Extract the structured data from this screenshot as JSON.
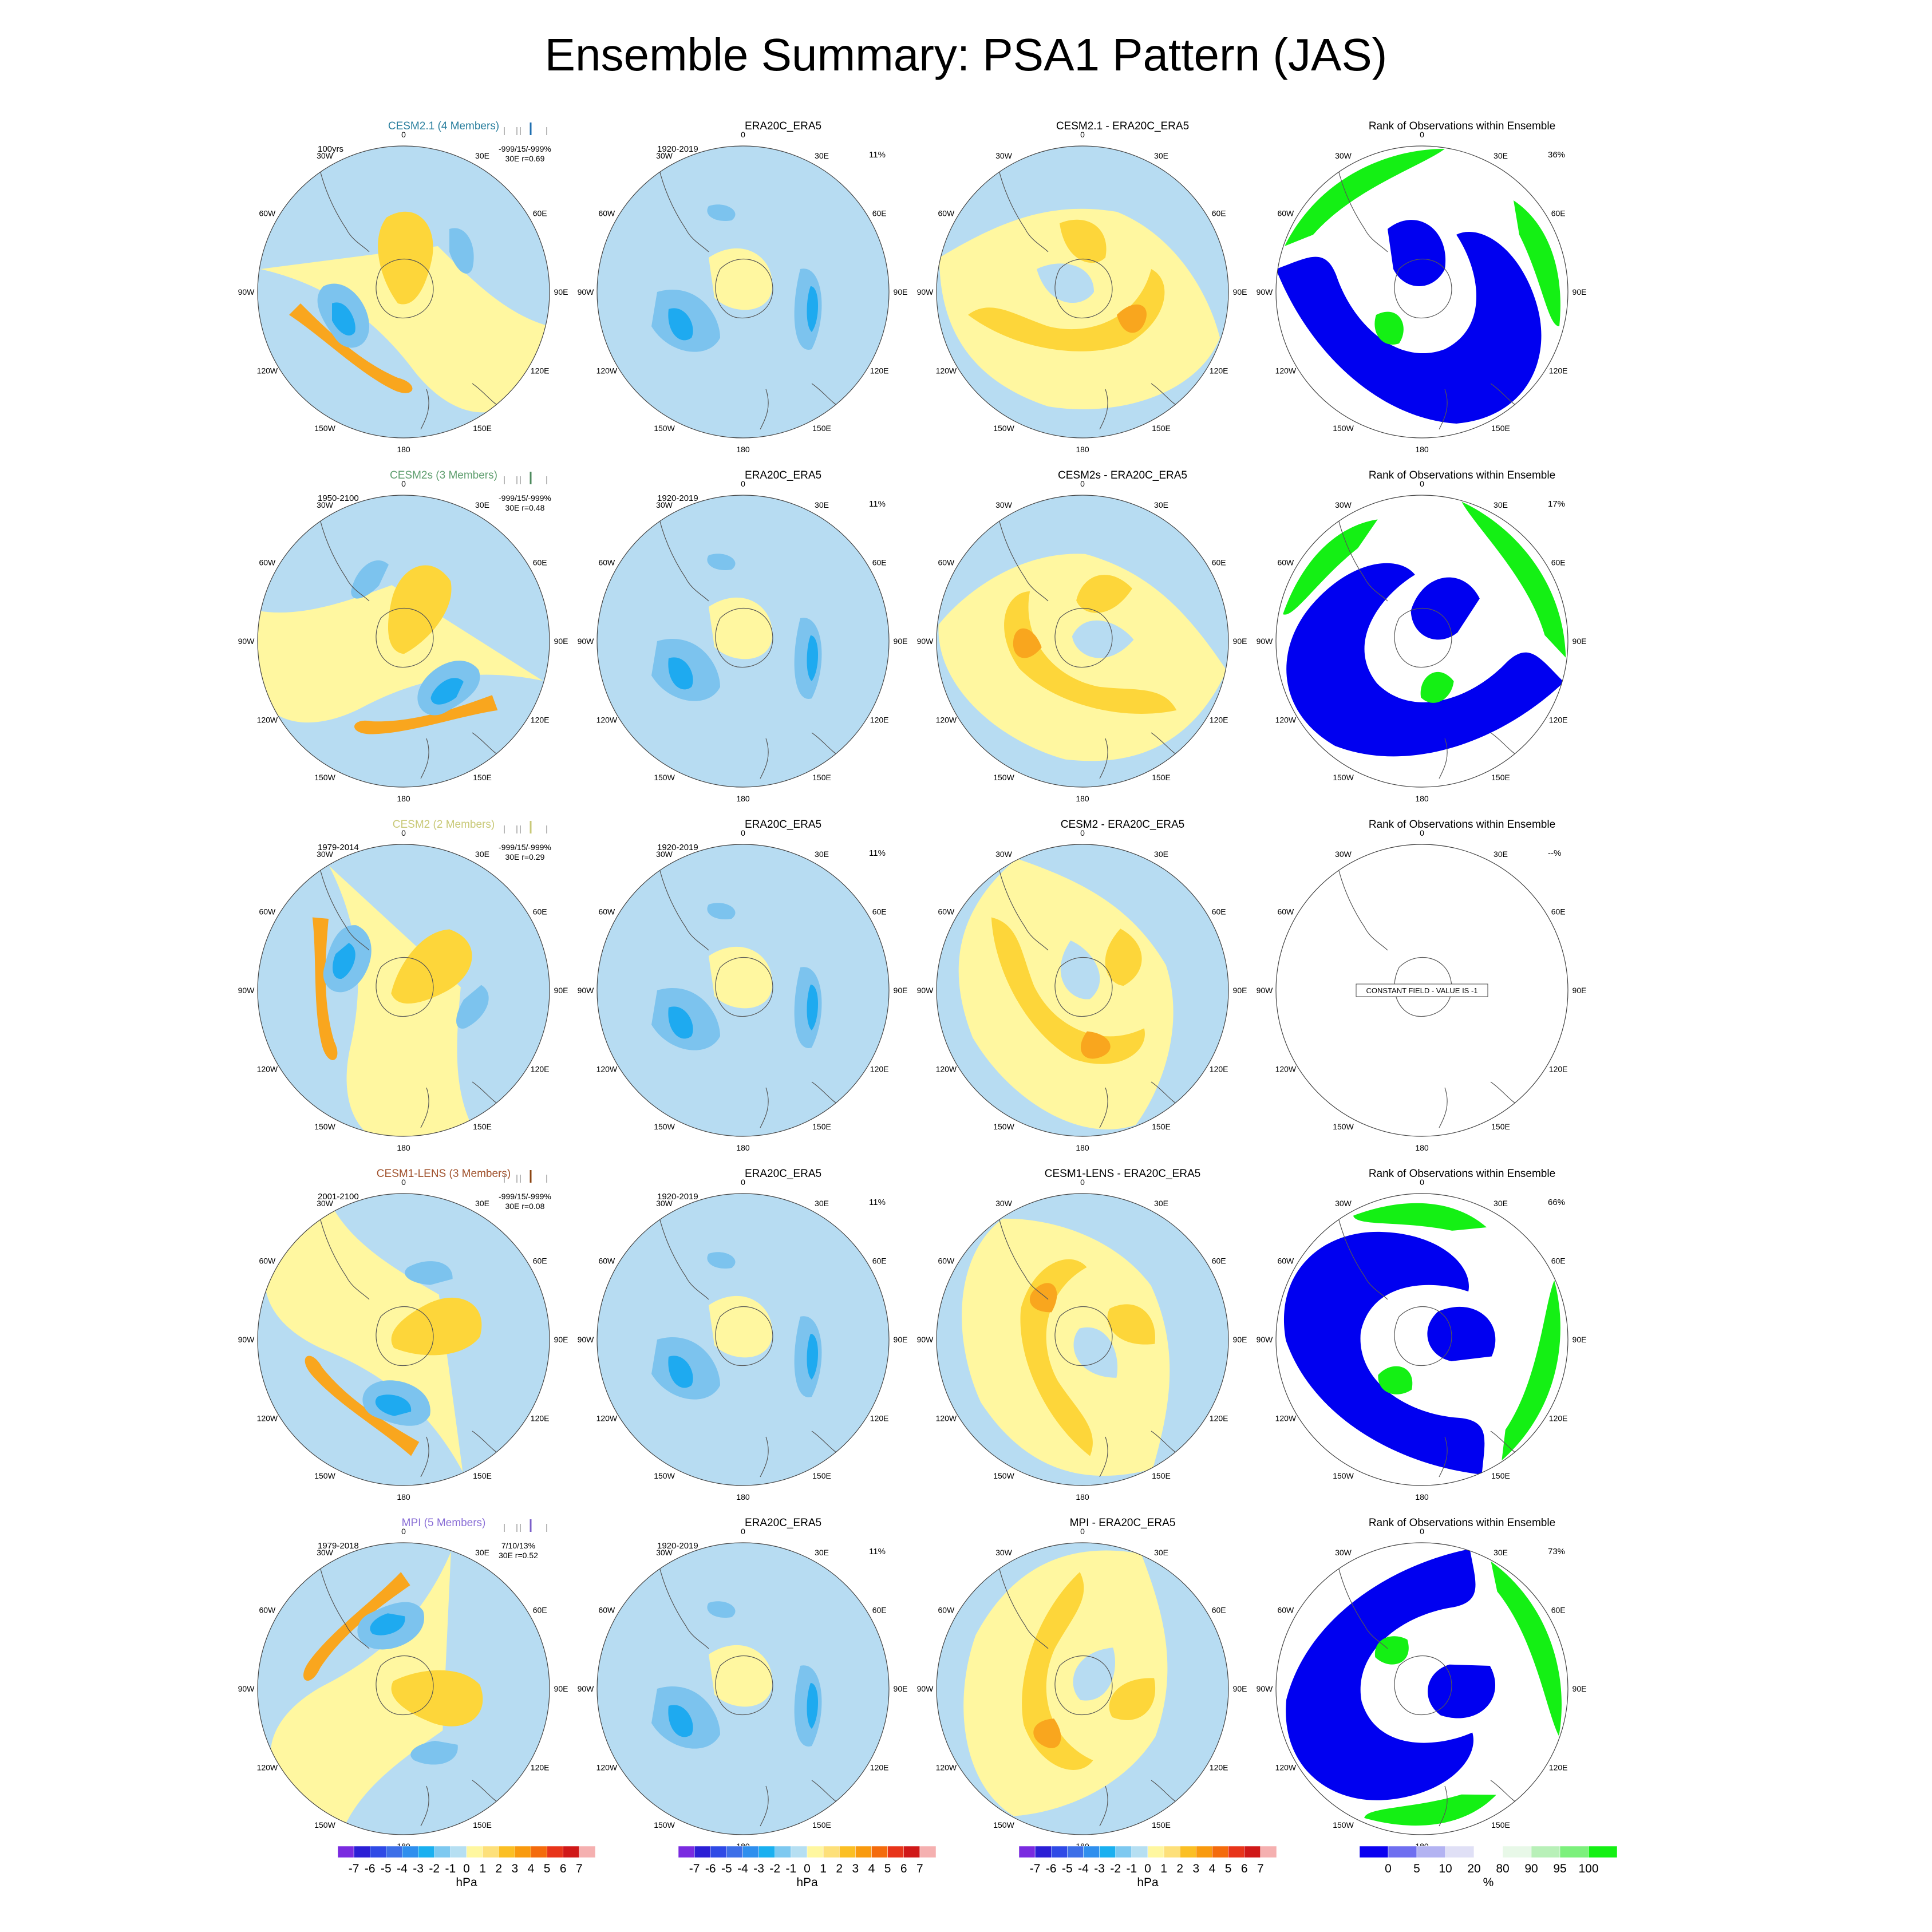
{
  "title": "Ensemble Summary: PSA1 Pattern (JAS)",
  "longitude_labels": [
    "0",
    "30E",
    "60E",
    "90E",
    "120E",
    "150E",
    "180",
    "150W",
    "120W",
    "90W",
    "60W",
    "30W"
  ],
  "rows": [
    {
      "model": {
        "title": "CESM2.1 (4 Members)",
        "title_color": "#2a7f9e",
        "period": "100yrs",
        "stats_line1": "-999/15/-999%",
        "stats_line2": "30E r=0.69",
        "tick_color": "#1f6fb0"
      },
      "obs": {
        "title": "ERA20C_ERA5",
        "period": "1920-2019",
        "pct": "11%"
      },
      "diff": {
        "title": "CESM2.1 - ERA20C_ERA5"
      },
      "rank": {
        "title": "Rank of Observations within Ensemble",
        "pct": "36%",
        "constant": false
      }
    },
    {
      "model": {
        "title": "CESM2s (3 Members)",
        "title_color": "#5e9e6e",
        "period": "1950-2100",
        "stats_line1": "-999/15/-999%",
        "stats_line2": "30E r=0.48",
        "tick_color": "#4d8a5d"
      },
      "obs": {
        "title": "ERA20C_ERA5",
        "period": "1920-2019",
        "pct": "11%"
      },
      "diff": {
        "title": "CESM2s - ERA20C_ERA5"
      },
      "rank": {
        "title": "Rank of Observations within Ensemble",
        "pct": "17%",
        "constant": false
      }
    },
    {
      "model": {
        "title": "CESM2 (2 Members)",
        "title_color": "#c9c978",
        "period": "1979-2014",
        "stats_line1": "-999/15/-999%",
        "stats_line2": "30E r=0.29",
        "tick_color": "#c9c978"
      },
      "obs": {
        "title": "ERA20C_ERA5",
        "period": "1920-2019",
        "pct": "11%"
      },
      "diff": {
        "title": "CESM2 - ERA20C_ERA5"
      },
      "rank": {
        "title": "Rank of Observations within Ensemble",
        "pct": "--%",
        "constant": true,
        "constant_text": "CONSTANT FIELD - VALUE IS -1"
      }
    },
    {
      "model": {
        "title": "CESM1-LENS (3 Members)",
        "title_color": "#a0522d",
        "period": "2001-2100",
        "stats_line1": "-999/15/-999%",
        "stats_line2": "30E r=0.08",
        "tick_color": "#8b4513"
      },
      "obs": {
        "title": "ERA20C_ERA5",
        "period": "1920-2019",
        "pct": "11%"
      },
      "diff": {
        "title": "CESM1-LENS - ERA20C_ERA5"
      },
      "rank": {
        "title": "Rank of Observations within Ensemble",
        "pct": "66%",
        "constant": false
      }
    },
    {
      "model": {
        "title": "MPI (5 Members)",
        "title_color": "#8a6fd6",
        "period": "1979-2018",
        "stats_line1": "7/10/13%",
        "stats_line2": "30E r=0.52",
        "tick_color": "#7b5fc9"
      },
      "obs": {
        "title": "ERA20C_ERA5",
        "period": "1920-2019",
        "pct": "11%"
      },
      "diff": {
        "title": "MPI - ERA20C_ERA5"
      },
      "rank": {
        "title": "Rank of Observations within Ensemble",
        "pct": "73%",
        "constant": false
      }
    }
  ],
  "colorbar_hpa": {
    "labels": [
      "-7",
      "-6",
      "-5",
      "-4",
      "-3",
      "-2",
      "-1",
      "0",
      "1",
      "2",
      "3",
      "4",
      "5",
      "6",
      "7"
    ],
    "colors": [
      "#7a2be0",
      "#2b1fd6",
      "#2f4ae6",
      "#3d6fe8",
      "#2f8fee",
      "#1ab0f0",
      "#7ec9f0",
      "#b6dff2",
      "#fff7a0",
      "#fde07a",
      "#fbbf24",
      "#f99a0e",
      "#f46b0c",
      "#e8341a",
      "#d01818",
      "#f5b0b0"
    ],
    "unit": "hPa"
  },
  "colorbar_rank": {
    "labels": [
      "0",
      "5",
      "10",
      "20",
      "80",
      "90",
      "95",
      "100"
    ],
    "colors": [
      "#0a00f0",
      "#6f6ff0",
      "#b3b3f2",
      "#e0e0f6",
      "#ffffff",
      "#e8f8e8",
      "#b8f0b8",
      "#7cf07c",
      "#14f014"
    ],
    "unit": "%"
  },
  "palette": {
    "light_blue": "#b7dcf2",
    "mid_blue": "#7cc3ee",
    "blue": "#1eaaf0",
    "light_yellow": "#fff7a0",
    "gold": "#fdd63a",
    "orange": "#f9a61e",
    "rank_blue": "#0000f0",
    "rank_green": "#14f014",
    "rank_light_green": "#e6fae6"
  }
}
